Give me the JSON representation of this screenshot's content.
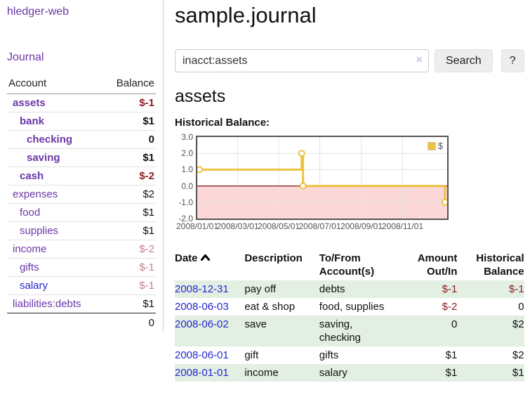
{
  "brand": "hledger-web",
  "nav": {
    "journal": "Journal"
  },
  "sidebar": {
    "header": {
      "account": "Account",
      "balance": "Balance"
    },
    "rows": [
      {
        "account": "assets",
        "balance": "$-1",
        "depth": 1
      },
      {
        "account": "bank",
        "balance": "$1",
        "depth": 2
      },
      {
        "account": "checking",
        "balance": "0",
        "depth": 3
      },
      {
        "account": "saving",
        "balance": "$1",
        "depth": 3
      },
      {
        "account": "cash",
        "balance": "$-2",
        "depth": 2
      },
      {
        "account": "expenses",
        "balance": "$2",
        "depth": 1
      },
      {
        "account": "food",
        "balance": "$1",
        "depth": 2
      },
      {
        "account": "supplies",
        "balance": "$1",
        "depth": 2
      },
      {
        "account": "income",
        "balance": "$-2",
        "depth": 1
      },
      {
        "account": "gifts",
        "balance": "$-1",
        "depth": 2
      },
      {
        "account": "salary",
        "balance": "$-1",
        "depth": 2
      },
      {
        "account": "liabilities:debts",
        "balance": "$1",
        "depth": 1
      }
    ],
    "total": "0"
  },
  "main": {
    "title": "sample.journal",
    "search": {
      "value": "inacct:assets",
      "clear": "×",
      "search_button": "Search",
      "help_button": "?"
    },
    "account_heading": "assets",
    "chart_label": "Historical Balance:"
  },
  "chart_data": {
    "type": "line",
    "style": "step",
    "title": "Historical Balance",
    "series": [
      {
        "name": "$",
        "color": "#edc240",
        "points": [
          {
            "date": "2008-01-01",
            "value": 1
          },
          {
            "date": "2008-06-01",
            "value": 2
          },
          {
            "date": "2008-06-03",
            "value": 0
          },
          {
            "date": "2008-12-31",
            "value": -1
          }
        ]
      }
    ],
    "x_ticks": [
      {
        "date": "2008-01-01",
        "label": "2008/01/01"
      },
      {
        "date": "2008-03-01",
        "label": "2008/03/01"
      },
      {
        "date": "2008-05-01",
        "label": "2008/05/01"
      },
      {
        "date": "2008-07-01",
        "label": "2008/07/01"
      },
      {
        "date": "2008-09-01",
        "label": "2008/09/01"
      },
      {
        "date": "2008-11-01",
        "label": "2008/11/01"
      }
    ],
    "y_ticks": [
      {
        "value": 3,
        "label": "3.0"
      },
      {
        "value": 2,
        "label": "2.0"
      },
      {
        "value": 1,
        "label": "1.0"
      },
      {
        "value": 0,
        "label": "0.0"
      },
      {
        "value": -1,
        "label": "-1.0"
      },
      {
        "value": -2,
        "label": "-2.0"
      }
    ],
    "xlim": [
      "2008-01-01",
      "2008-12-31"
    ],
    "ylim": [
      -2,
      3
    ],
    "grid": true,
    "legend": {
      "position": "top-right",
      "label": "$"
    },
    "colors": {
      "line": "#edc240",
      "marker_fill": "#ffffff",
      "negative_region": "#fbd7d7",
      "zero_line": "#871414",
      "gridline": "#e6e6e6",
      "border": "#545454"
    }
  },
  "register": {
    "headers": {
      "date": "Date",
      "description": "Description",
      "tofrom": "To/From Account(s)",
      "amount": "Amount Out/In",
      "balance": "Historical Balance"
    },
    "rows": [
      {
        "date": "2008-12-31",
        "description": "pay off",
        "accounts": "debts",
        "amount": "$-1",
        "balance": "$-1"
      },
      {
        "date": "2008-06-03",
        "description": "eat & shop",
        "accounts": "food, supplies",
        "amount": "$-2",
        "balance": "0"
      },
      {
        "date": "2008-06-02",
        "description": "save",
        "accounts": "saving, checking",
        "amount": "0",
        "balance": "$2"
      },
      {
        "date": "2008-06-01",
        "description": "gift",
        "accounts": "gifts",
        "amount": "$1",
        "balance": "$2"
      },
      {
        "date": "2008-01-01",
        "description": "income",
        "accounts": "salary",
        "amount": "$1",
        "balance": "$1"
      }
    ]
  }
}
